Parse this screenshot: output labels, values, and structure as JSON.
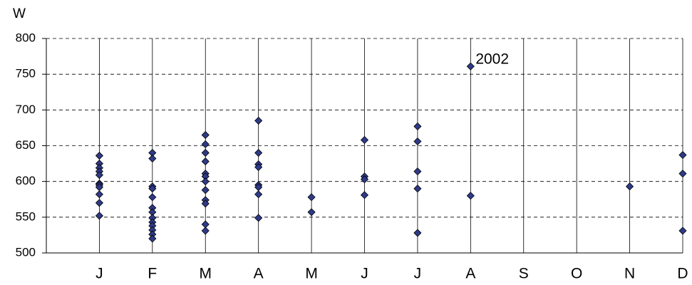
{
  "chart_data": {
    "type": "scatter",
    "y_label": "W",
    "x": [
      1,
      1,
      1,
      1,
      1,
      1,
      1,
      1,
      1,
      1,
      1,
      2,
      2,
      2,
      2,
      2,
      2,
      2,
      2,
      2,
      2,
      2,
      2,
      2,
      3,
      3,
      3,
      3,
      3,
      3,
      3,
      3,
      3,
      3,
      3,
      3,
      4,
      4,
      4,
      4,
      4,
      4,
      4,
      4,
      5,
      5,
      6,
      6,
      6,
      6,
      7,
      7,
      7,
      7,
      7,
      8,
      8,
      11,
      12,
      12,
      12
    ],
    "values": [
      636,
      625,
      619,
      614,
      609,
      597,
      595,
      592,
      582,
      570,
      552,
      640,
      632,
      593,
      590,
      578,
      563,
      557,
      549,
      543,
      538,
      532,
      526,
      520,
      665,
      652,
      640,
      628,
      611,
      607,
      600,
      588,
      574,
      569,
      540,
      531,
      685,
      640,
      624,
      620,
      595,
      592,
      582,
      549,
      578,
      557,
      658,
      607,
      603,
      581,
      677,
      656,
      614,
      590,
      528,
      761,
      580,
      593,
      637,
      611,
      531
    ],
    "color": "#2e3a87",
    "xlim": [
      0,
      12
    ],
    "xticks": [
      {
        "value": 1,
        "label": "J"
      },
      {
        "value": 2,
        "label": "F"
      },
      {
        "value": 3,
        "label": "M"
      },
      {
        "value": 4,
        "label": "A"
      },
      {
        "value": 5,
        "label": "M"
      },
      {
        "value": 6,
        "label": "J"
      },
      {
        "value": 7,
        "label": "J"
      },
      {
        "value": 8,
        "label": "A"
      },
      {
        "value": 9,
        "label": "S"
      },
      {
        "value": 10,
        "label": "O"
      },
      {
        "value": 11,
        "label": "N"
      },
      {
        "value": 12,
        "label": "D"
      }
    ],
    "ylim": [
      500,
      800
    ],
    "yticks": [
      500,
      550,
      600,
      650,
      700,
      750,
      800
    ],
    "grid": true,
    "annotations": [
      {
        "text": "2002",
        "x": 8,
        "y": 761
      }
    ]
  }
}
